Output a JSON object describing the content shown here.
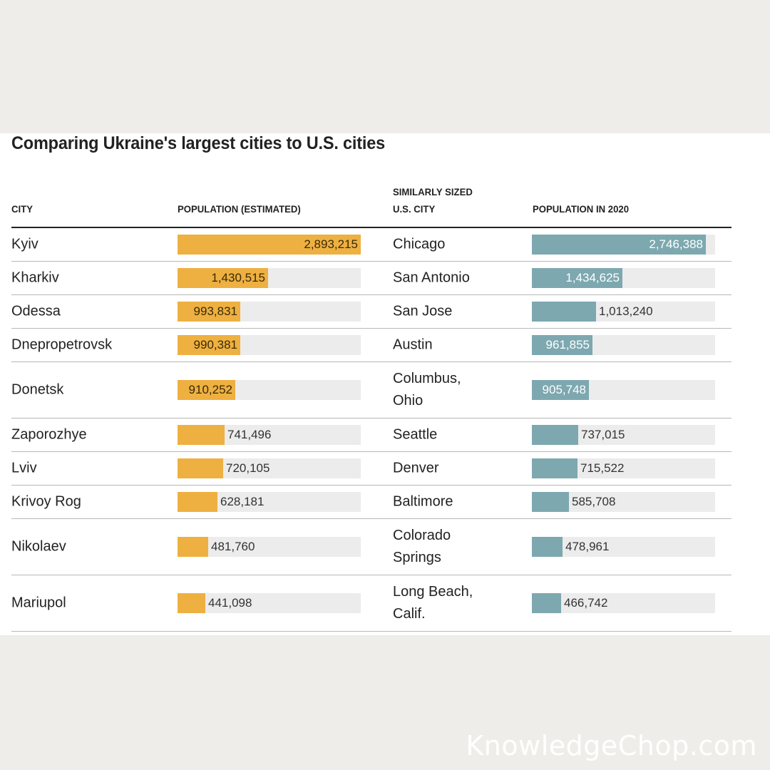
{
  "title": "Comparing Ukraine's largest cities to U.S. cities",
  "headers": {
    "city": "CITY",
    "population_estimated": "POPULATION (ESTIMATED)",
    "similar_line1": "SIMILARLY SIZED",
    "similar_line2": "U.S. CITY",
    "population_2020": "POPULATION IN 2020"
  },
  "colors": {
    "ukraine_bar": "#eeb040",
    "us_bar": "#7da8b0",
    "track": "#ececec",
    "background": "#eeede9"
  },
  "watermark": "KnowledgeChop.com",
  "chart_data": {
    "type": "table",
    "title": "Comparing Ukraine's largest cities to U.S. cities",
    "columns": [
      "CITY",
      "POPULATION (ESTIMATED)",
      "SIMILARLY SIZED U.S. CITY",
      "POPULATION IN 2020"
    ],
    "bar_scale_max": 2893215,
    "rows": [
      {
        "city": "Kyiv",
        "population": 2893215,
        "population_label": "2,893,215",
        "us_city": "Chicago",
        "us_population": 2746388,
        "us_population_label": "2,746,388"
      },
      {
        "city": "Kharkiv",
        "population": 1430515,
        "population_label": "1,430,515",
        "us_city": "San Antonio",
        "us_population": 1434625,
        "us_population_label": "1,434,625"
      },
      {
        "city": "Odessa",
        "population": 993831,
        "population_label": "993,831",
        "us_city": "San Jose",
        "us_population": 1013240,
        "us_population_label": "1,013,240"
      },
      {
        "city": "Dnepropetrovsk",
        "population": 990381,
        "population_label": "990,381",
        "us_city": "Austin",
        "us_population": 961855,
        "us_population_label": "961,855"
      },
      {
        "city": "Donetsk",
        "population": 910252,
        "population_label": "910,252",
        "us_city": "Columbus, Ohio",
        "us_population": 905748,
        "us_population_label": "905,748"
      },
      {
        "city": "Zaporozhye",
        "population": 741496,
        "population_label": "741,496",
        "us_city": "Seattle",
        "us_population": 737015,
        "us_population_label": "737,015"
      },
      {
        "city": "Lviv",
        "population": 720105,
        "population_label": "720,105",
        "us_city": "Denver",
        "us_population": 715522,
        "us_population_label": "715,522"
      },
      {
        "city": "Krivoy Rog",
        "population": 628181,
        "population_label": "628,181",
        "us_city": "Baltimore",
        "us_population": 585708,
        "us_population_label": "585,708"
      },
      {
        "city": "Nikolaev",
        "population": 481760,
        "population_label": "481,760",
        "us_city": "Colorado Springs",
        "us_population": 478961,
        "us_population_label": "478,961"
      },
      {
        "city": "Mariupol",
        "population": 441098,
        "population_label": "441,098",
        "us_city": "Long Beach, Calif.",
        "us_population": 466742,
        "us_population_label": "466,742"
      }
    ]
  }
}
